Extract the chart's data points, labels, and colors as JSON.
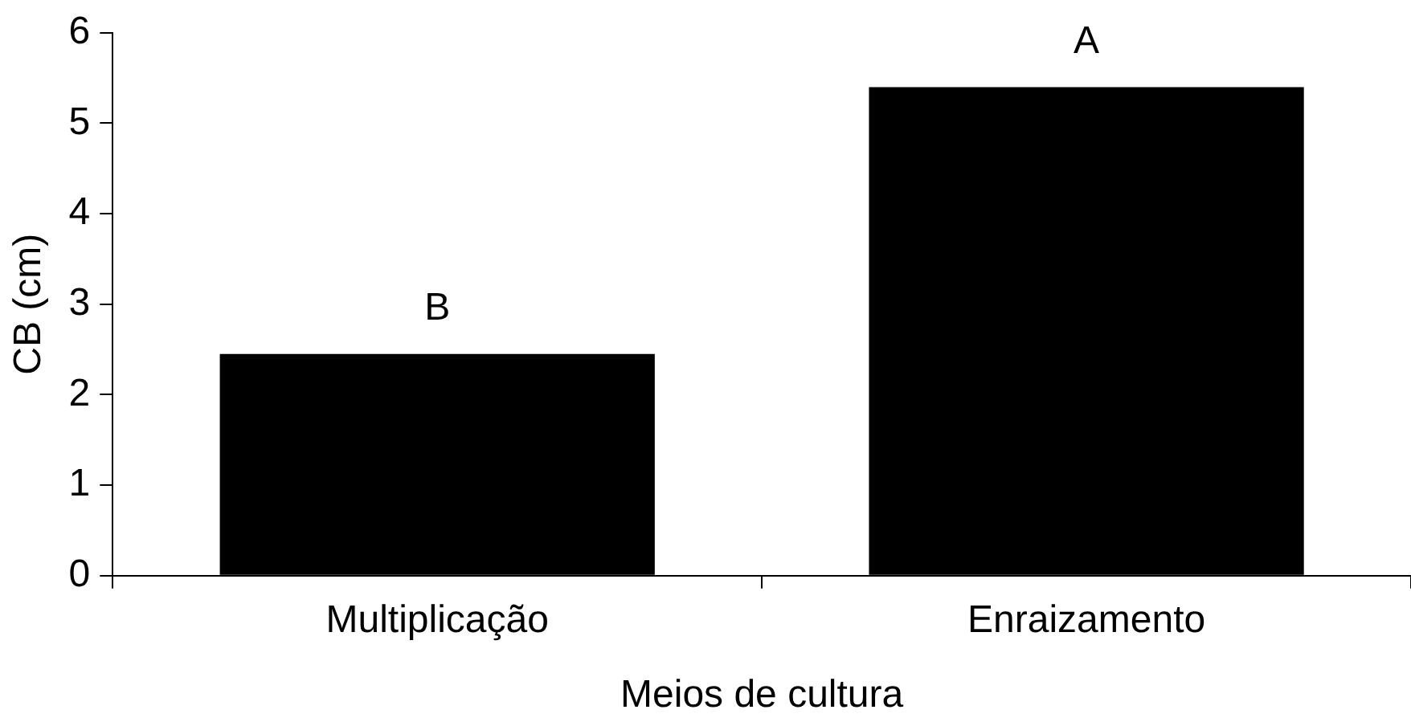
{
  "chart_data": {
    "type": "bar",
    "xlabel": "Meios de cultura",
    "ylabel": "CB (cm)",
    "categories": [
      "Multiplicação",
      "Enraizamento"
    ],
    "values": [
      2.45,
      5.4
    ],
    "color": "#000000",
    "ylim": [
      0,
      6
    ],
    "yticks": [
      0,
      1,
      2,
      3,
      4,
      5,
      6
    ],
    "grid": false,
    "legend": false,
    "annotations": [
      {
        "text": "B",
        "x": "Multiplicação",
        "y": 2.45
      },
      {
        "text": "A",
        "x": "Enraizamento",
        "y": 5.4
      }
    ]
  }
}
